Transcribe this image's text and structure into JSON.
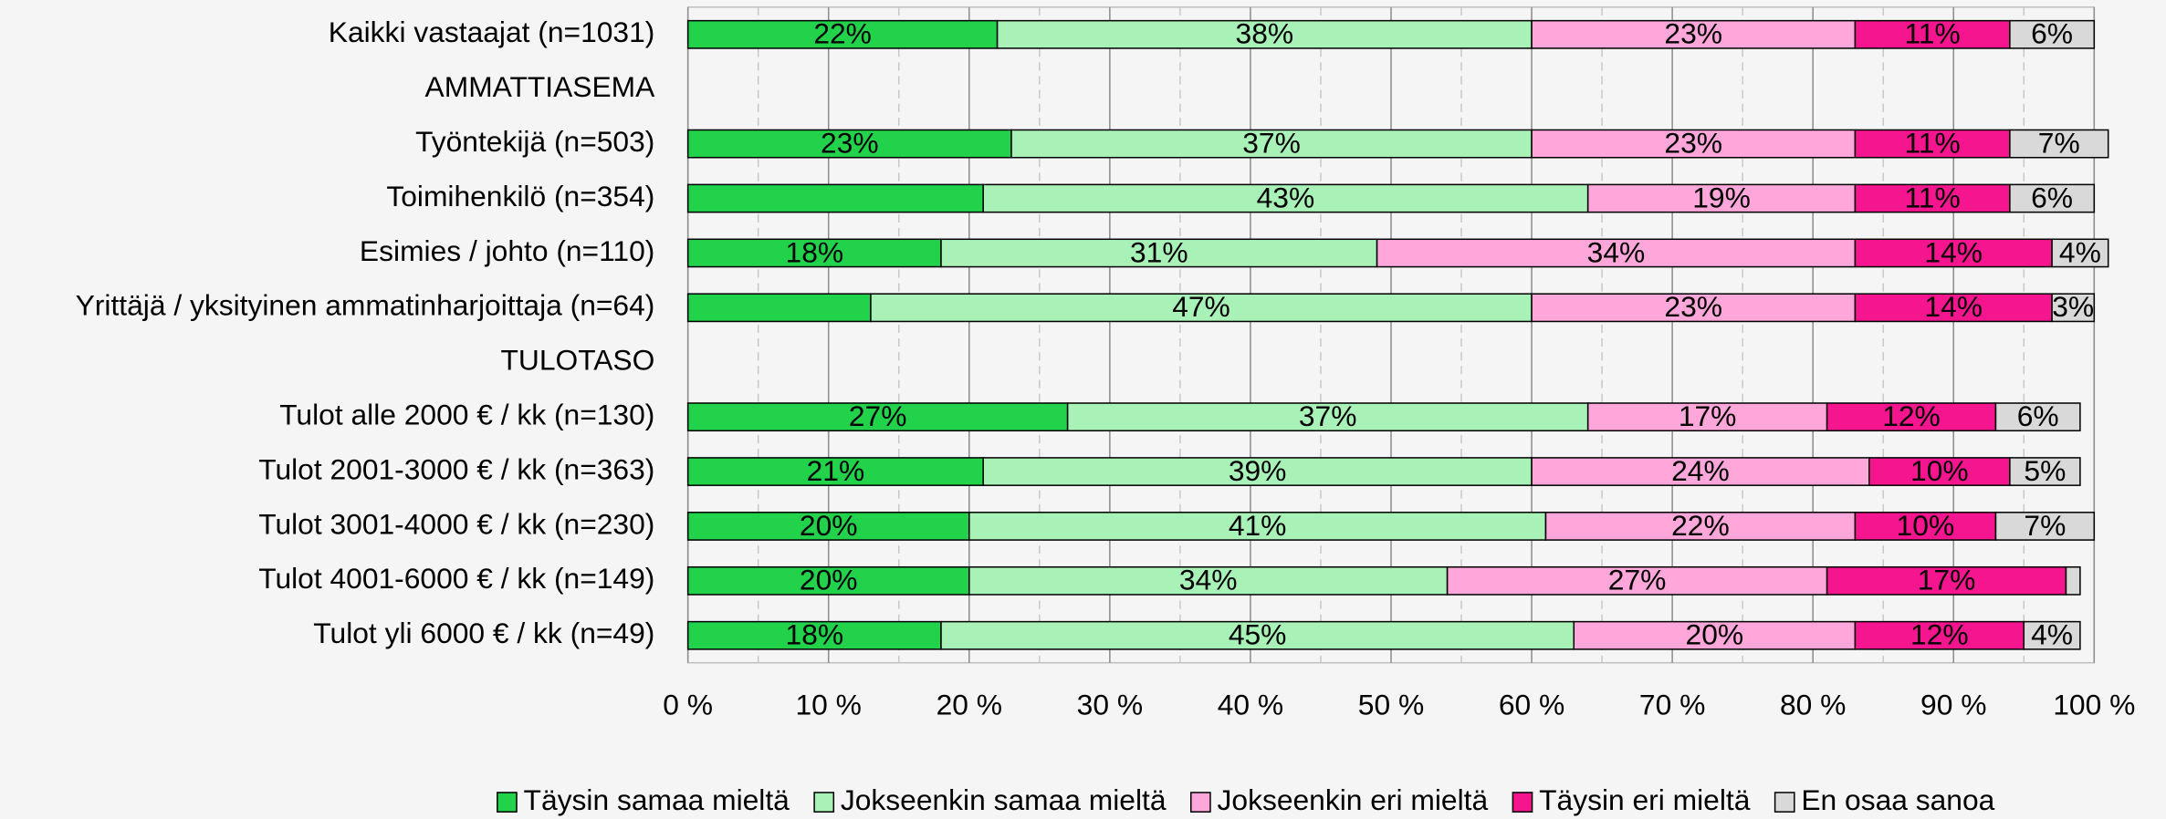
{
  "chart_data": {
    "type": "stacked_barh",
    "categories": [
      "Kaikki vastaajat (n=1031)",
      "AMMATTIASEMA",
      "Työntekijä (n=503)",
      "Toimihenkilö (n=354)",
      "Esimies / johto (n=110)",
      "Yrittäjä / yksityinen ammatinharjoittaja (n=64)",
      "TULOTASO",
      "Tulot alle 2000 € / kk (n=130)",
      "Tulot 2001-3000 € / kk (n=363)",
      "Tulot 3001-4000 € / kk (n=230)",
      "Tulot 4001-6000 € / kk (n=149)",
      "Tulot yli 6000 € / kk (n=49)"
    ],
    "series": [
      {
        "name": "Täysin samaa mieltä",
        "color": "#22d24a",
        "values": [
          22,
          null,
          23,
          21,
          18,
          13,
          null,
          27,
          21,
          20,
          20,
          18
        ],
        "value_labels": [
          "22%",
          null,
          "23%",
          null,
          "18%",
          null,
          null,
          "27%",
          "21%",
          "20%",
          "20%",
          "18%"
        ]
      },
      {
        "name": "Jokseenkin samaa mieltä",
        "color": "#a8f2b8",
        "values": [
          38,
          null,
          37,
          43,
          31,
          47,
          null,
          37,
          39,
          41,
          34,
          45
        ],
        "value_labels": [
          "38%",
          null,
          "37%",
          "43%",
          "31%",
          "47%",
          null,
          "37%",
          "39%",
          "41%",
          "34%",
          "45%"
        ]
      },
      {
        "name": "Jokseenkin eri mieltä",
        "color": "#ffa6da",
        "values": [
          23,
          null,
          23,
          19,
          34,
          23,
          null,
          17,
          24,
          22,
          27,
          20
        ],
        "value_labels": [
          "23%",
          null,
          "23%",
          "19%",
          "34%",
          "23%",
          null,
          "17%",
          "24%",
          "22%",
          "27%",
          "20%"
        ]
      },
      {
        "name": "Täysin eri mieltä",
        "color": "#f5158f",
        "values": [
          11,
          null,
          11,
          11,
          14,
          14,
          null,
          12,
          10,
          10,
          17,
          12
        ],
        "value_labels": [
          "11%",
          null,
          "11%",
          "11%",
          "14%",
          "14%",
          null,
          "12%",
          "10%",
          "10%",
          "17%",
          "12%"
        ]
      },
      {
        "name": "En osaa sanoa",
        "color": "#d9d9d9",
        "values": [
          6,
          null,
          7,
          6,
          4,
          3,
          null,
          6,
          5,
          7,
          1,
          4
        ],
        "value_labels": [
          "6%",
          null,
          "7%",
          "6%",
          "4%",
          "3%",
          null,
          "6%",
          "5%",
          "7%",
          null,
          "4%"
        ]
      }
    ],
    "xlim": [
      0,
      100
    ],
    "xticks": [
      {
        "value": 0,
        "label": "0 %"
      },
      {
        "value": 10,
        "label": "10 %"
      },
      {
        "value": 20,
        "label": "20 %"
      },
      {
        "value": 30,
        "label": "30 %"
      },
      {
        "value": 40,
        "label": "40 %"
      },
      {
        "value": 50,
        "label": "50 %"
      },
      {
        "value": 60,
        "label": "60 %"
      },
      {
        "value": 70,
        "label": "70 %"
      },
      {
        "value": 80,
        "label": "80 %"
      },
      {
        "value": 90,
        "label": "90 %"
      },
      {
        "value": 100,
        "label": "100 %"
      }
    ],
    "xminorticks": [
      5,
      15,
      25,
      35,
      45,
      55,
      65,
      75,
      85,
      95
    ],
    "grid": true,
    "legend": "bottom"
  }
}
